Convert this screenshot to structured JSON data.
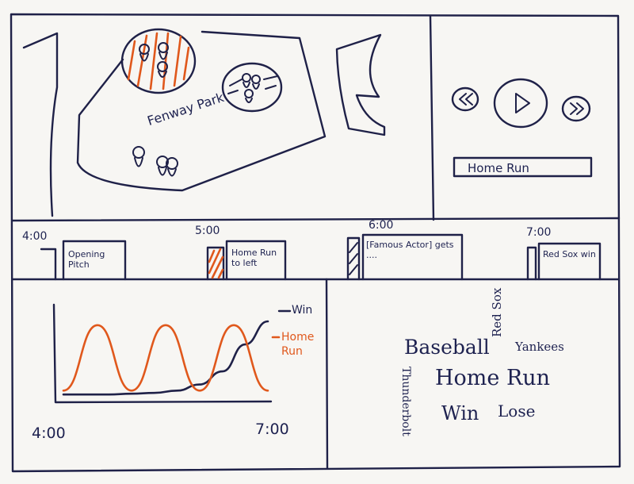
{
  "map": {
    "stadium_label": "Fenway Park"
  },
  "player": {
    "rewind_icon": "rewind-icon",
    "play_icon": "play-icon",
    "forward_icon": "fast-forward-icon",
    "clip_title": "Home Run"
  },
  "timeline": {
    "times": [
      "4:00",
      "5:00",
      "6:00",
      "7:00"
    ],
    "clips": [
      {
        "label": "Opening Pitch"
      },
      {
        "label": "Home Run to left"
      },
      {
        "label": "[Famous Actor] gets ...."
      },
      {
        "label": "Red Sox win"
      }
    ]
  },
  "chart_data": {
    "type": "line",
    "x_start_label": "4:00",
    "x_end_label": "7:00",
    "legend": [
      {
        "name": "Win",
        "color": "#1f2148"
      },
      {
        "name": "Home Run",
        "color": "#e0581c"
      }
    ],
    "series": [
      {
        "name": "Win",
        "values": [
          0.05,
          0.05,
          0.05,
          0.06,
          0.07,
          0.1,
          0.18,
          0.35,
          0.7,
          1.0
        ]
      },
      {
        "name": "Home Run",
        "values": [
          0.1,
          0.95,
          0.1,
          0.95,
          0.1,
          0.95,
          0.1
        ]
      }
    ]
  },
  "tag_cloud": {
    "words": [
      "Baseball",
      "Red Sox",
      "Yankees",
      "Thunderbolt",
      "Home Run",
      "Win",
      "Lose"
    ]
  }
}
